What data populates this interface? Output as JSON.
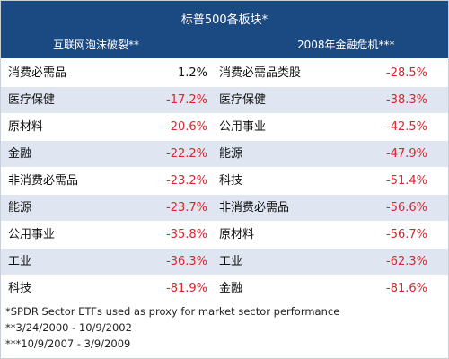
{
  "header": {
    "title": "标普500各板块*",
    "left_period": "互联网泡沫破裂**",
    "right_period": "2008年金融危机***"
  },
  "rows": [
    {
      "left_label": "消费必需品",
      "left_value": "1.2%",
      "right_label": "消费必需品类股",
      "right_value": "-28.5%"
    },
    {
      "left_label": "医疗保健",
      "left_value": "-17.2%",
      "right_label": "医疗保健",
      "right_value": "-38.3%"
    },
    {
      "left_label": "原材料",
      "left_value": "-20.6%",
      "right_label": "公用事业",
      "right_value": "-42.5%"
    },
    {
      "left_label": "金融",
      "left_value": "-22.2%",
      "right_label": "能源",
      "right_value": "-47.9%"
    },
    {
      "left_label": "非消费必需品",
      "left_value": "-23.2%",
      "right_label": "科技",
      "right_value": "-51.4%"
    },
    {
      "left_label": "能源",
      "left_value": "-23.7%",
      "right_label": "非消费必需品",
      "right_value": "-56.6%"
    },
    {
      "left_label": "公用事业",
      "left_value": "-35.8%",
      "right_label": "原材料",
      "right_value": "-56.7%"
    },
    {
      "left_label": "工业",
      "left_value": "-36.3%",
      "right_label": "工业",
      "right_value": "-62.3%"
    },
    {
      "left_label": "科技",
      "left_value": "-81.9%",
      "right_label": "金融",
      "right_value": "-81.6%"
    }
  ],
  "notes": [
    "*SPDR Sector ETFs used as proxy for market sector performance",
    "**3/24/2000 - 10/9/2002",
    "***10/9/2007 - 3/9/2009"
  ],
  "colors": {
    "header_bg": "#1b4a82",
    "negative": "#d9252e",
    "row_alt": "#dfe6f1"
  }
}
